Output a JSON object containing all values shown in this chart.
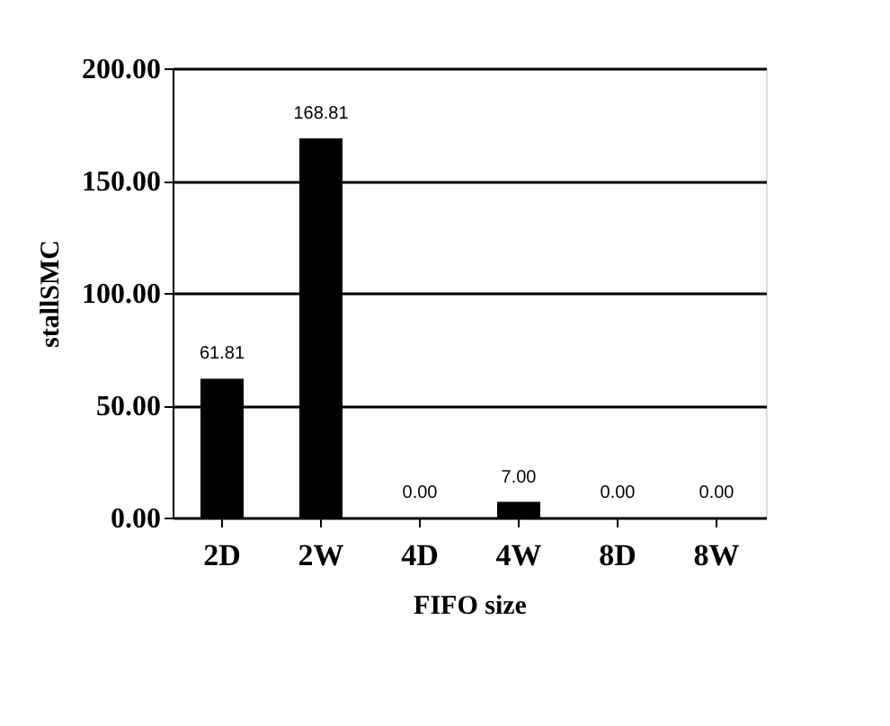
{
  "chart_data": {
    "type": "bar",
    "xlabel": "FIFO size",
    "ylabel": "stallSMC",
    "categories": [
      "2D",
      "2W",
      "4D",
      "4W",
      "8D",
      "8W"
    ],
    "values": [
      61.81,
      168.81,
      0,
      7,
      0,
      0
    ],
    "value_labels": [
      "61.81",
      "168.81",
      "0.00",
      "7.00",
      "0.00",
      "0.00"
    ],
    "color": "#000000",
    "ylim": [
      0,
      200
    ],
    "yticks": [
      {
        "value": 0,
        "label": "0.00"
      },
      {
        "value": 50,
        "label": "50.00"
      },
      {
        "value": 100,
        "label": "100.00"
      },
      {
        "value": 150,
        "label": "150.00"
      },
      {
        "value": 200,
        "label": "200.00"
      }
    ],
    "grid": "y"
  }
}
